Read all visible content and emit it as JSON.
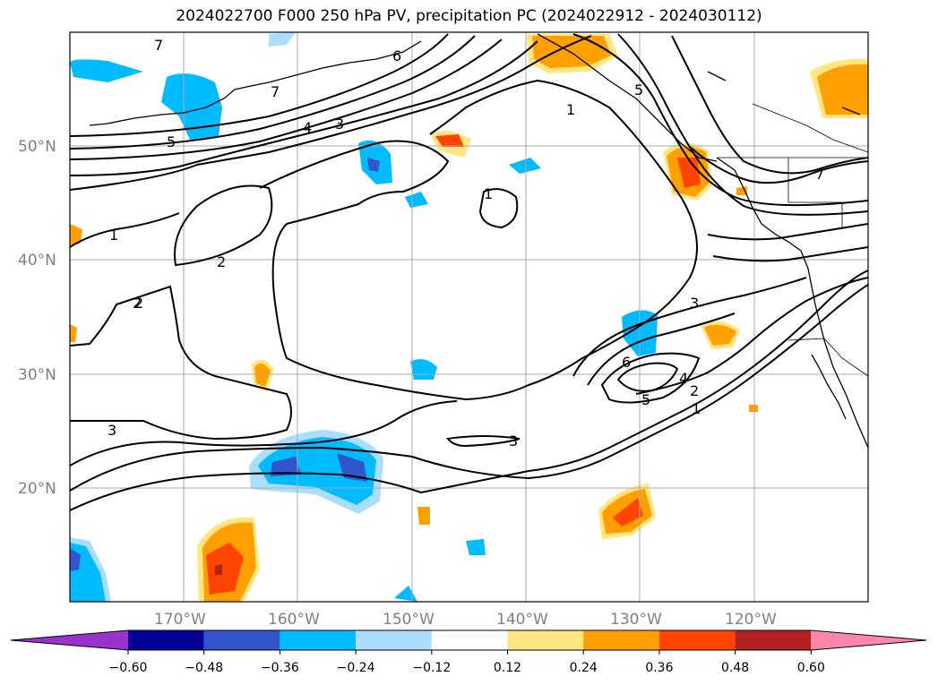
{
  "title": "2024022700 F000 250 hPa PV, precipitation PC (2024022912 - 2024030112)",
  "lat_labels": [
    "50°N",
    "40°N",
    "30°N",
    "20°N"
  ],
  "lon_labels": [
    "170°W",
    "160°W",
    "150°W",
    "140°W",
    "130°W",
    "120°W"
  ],
  "contour_labels": [
    "7",
    "6",
    "5",
    "4",
    "3",
    "5",
    "1",
    "1",
    "2",
    "7",
    "2",
    "1",
    "3",
    "6",
    "5",
    "4",
    "2",
    "1",
    "3",
    "3",
    "7",
    "2"
  ],
  "colorbar": {
    "ticks": [
      "−0.60",
      "−0.48",
      "−0.36",
      "−0.24",
      "−0.12",
      "0.12",
      "0.24",
      "0.36",
      "0.48",
      "0.60"
    ],
    "colors": [
      "#9933cc",
      "#000099",
      "#3355cc",
      "#00bbff",
      "#aaddff",
      "#ffffff",
      "#ffe680",
      "#ff9f00",
      "#ff4400",
      "#b22222",
      "#ff88aa"
    ]
  }
}
